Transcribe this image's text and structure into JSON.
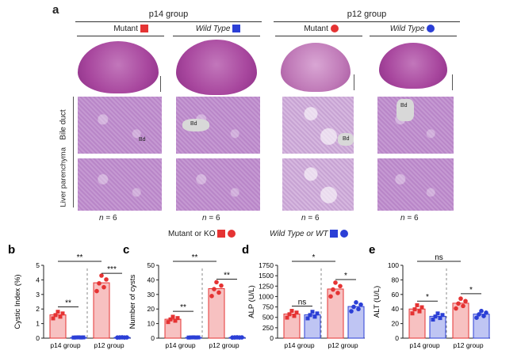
{
  "panel_a": {
    "letter": "a",
    "groups": [
      {
        "title": "p14 group"
      },
      {
        "title": "p12 group"
      }
    ],
    "columns": [
      {
        "label": "Mutant",
        "color": "#e53333",
        "marker": "square"
      },
      {
        "label": "Wild Type",
        "color": "#2b3fd6",
        "marker": "square"
      },
      {
        "label": "Mutant",
        "color": "#e53333",
        "marker": "circle"
      },
      {
        "label": "Wild Type",
        "color": "#2b3fd6",
        "marker": "circle"
      }
    ],
    "row_labels": [
      "Bile duct",
      "Liver parenchyma"
    ],
    "bd_label": "Bd",
    "n_prefix": "n",
    "n_value": "= 6",
    "legend": {
      "mutant_text": "Mutant or KO",
      "wt_text": "Wild Type or WT"
    }
  },
  "chart_data": [
    {
      "panel": "b",
      "type": "bar",
      "ylabel": "Cystic Index (%)",
      "ylim": [
        0,
        5
      ],
      "yticks": [
        "0",
        "1",
        "2",
        "3",
        "4",
        "5"
      ],
      "categories": [
        "p14 group",
        "p12 group"
      ],
      "series": [
        {
          "values": [
            1.6,
            3.8
          ],
          "color": "#e53333"
        },
        {
          "values": [
            0.05,
            0.05
          ],
          "color": "#2b3fd6"
        }
      ],
      "annotations": [
        {
          "text": "**",
          "between": "p14 mutant vs wt"
        },
        {
          "text": "***",
          "between": "p12 mutant vs wt"
        },
        {
          "text": "**",
          "between": "p14 mutant vs p12 mutant"
        }
      ]
    },
    {
      "panel": "c",
      "type": "bar",
      "ylabel": "Number of cysts",
      "ylim": [
        0,
        50
      ],
      "yticks": [
        "0",
        "10",
        "20",
        "30",
        "40",
        "50"
      ],
      "categories": [
        "p14 group",
        "p12 group"
      ],
      "series": [
        {
          "values": [
            13,
            34
          ],
          "color": "#e53333"
        },
        {
          "values": [
            0.5,
            0.5
          ],
          "color": "#2b3fd6"
        }
      ],
      "annotations": [
        {
          "text": "**",
          "between": "p14 mutant vs wt"
        },
        {
          "text": "**",
          "between": "p12 mutant vs wt"
        },
        {
          "text": "**",
          "between": "p14 mutant vs p12 mutant"
        }
      ]
    },
    {
      "panel": "d",
      "type": "bar",
      "ylabel": "ALP (U/L)",
      "ylim": [
        0,
        1750
      ],
      "yticks": [
        "0",
        "250",
        "500",
        "750",
        "1000",
        "1250",
        "1500",
        "1750"
      ],
      "categories": [
        "p14 group",
        "p12 group"
      ],
      "series": [
        {
          "values": [
            580,
            1180
          ],
          "color": "#e53333"
        },
        {
          "values": [
            560,
            760
          ],
          "color": "#2b3fd6"
        }
      ],
      "annotations": [
        {
          "text": "ns",
          "between": "p14 mutant vs wt"
        },
        {
          "text": "*",
          "between": "p12 mutant vs wt"
        },
        {
          "text": "*",
          "between": "p14 mutant vs p12 mutant"
        }
      ]
    },
    {
      "panel": "e",
      "type": "bar",
      "ylabel": "ALT (U/L)",
      "ylim": [
        0,
        100
      ],
      "yticks": [
        "0",
        "20",
        "40",
        "60",
        "80",
        "100"
      ],
      "categories": [
        "p14 group",
        "p12 group"
      ],
      "series": [
        {
          "values": [
            40,
            48
          ],
          "color": "#e53333"
        },
        {
          "values": [
            30,
            33
          ],
          "color": "#2b3fd6"
        }
      ],
      "annotations": [
        {
          "text": "*",
          "between": "p14 mutant vs wt"
        },
        {
          "text": "*",
          "between": "p12 mutant vs wt"
        },
        {
          "text": "ns",
          "between": "p14 mutant vs p12 mutant"
        }
      ]
    }
  ]
}
